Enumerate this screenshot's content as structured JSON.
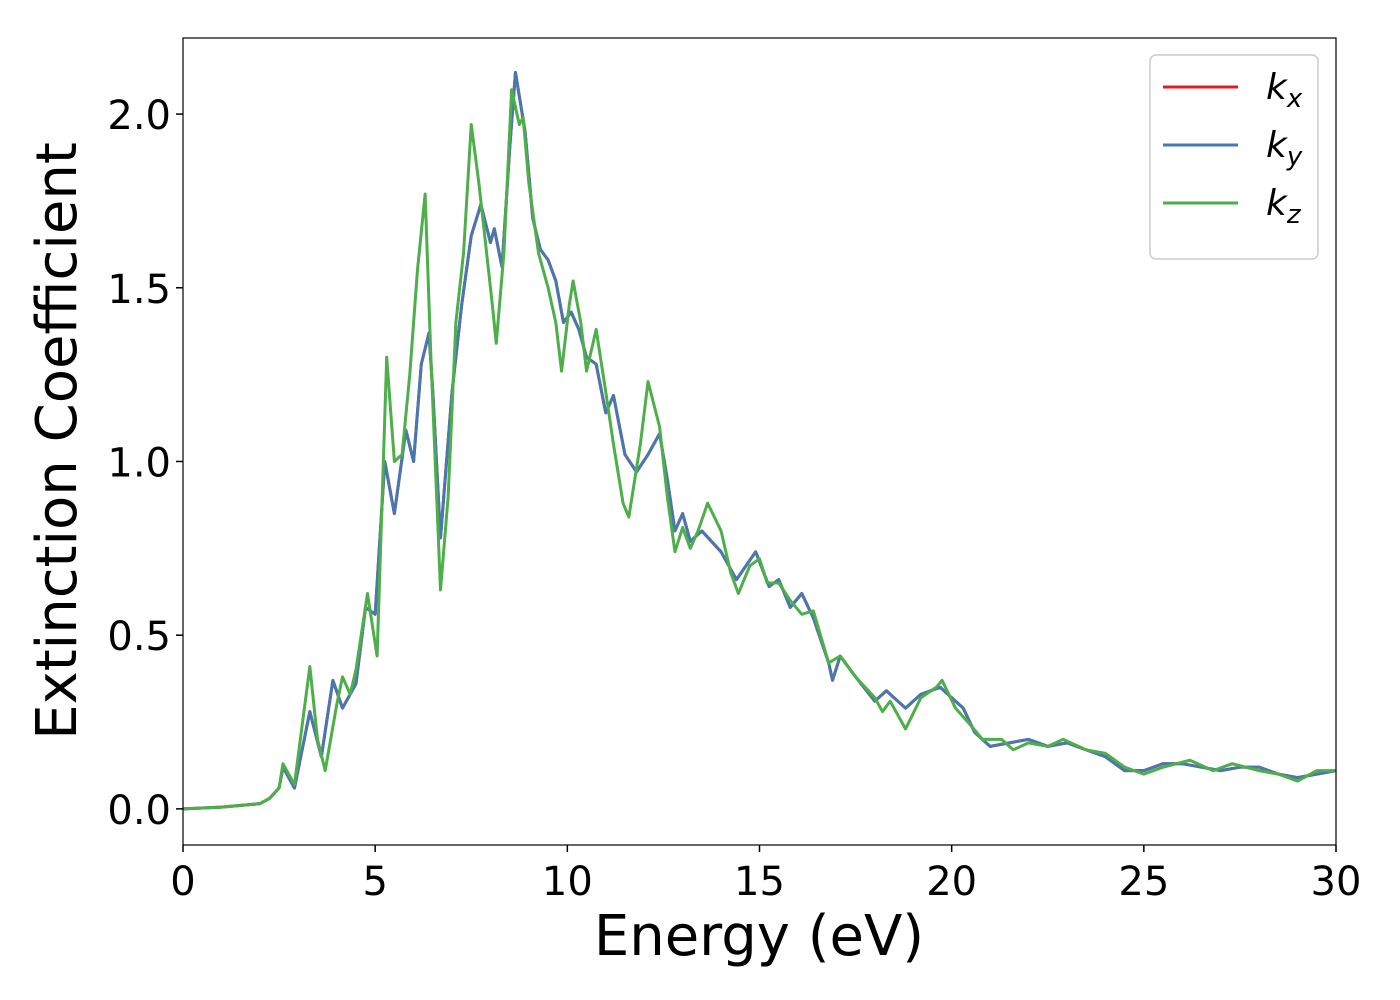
{
  "chart_data": {
    "type": "line",
    "x_label": "Energy (eV)",
    "y_label": "Extinction Coefficient",
    "xlim": [
      0,
      30
    ],
    "ylim": [
      -0.104,
      2.219
    ],
    "xticks": [
      0,
      5,
      10,
      15,
      20,
      25,
      30
    ],
    "yticks": [
      {
        "value": 0,
        "label": "0.0"
      },
      0.5,
      {
        "value": 1,
        "label": "1.0"
      },
      1.5,
      {
        "value": 2,
        "label": "2.0"
      }
    ],
    "legend": "upper right",
    "grid": false,
    "series": [
      {
        "name": "kx",
        "color": "#e41a1c",
        "x": [
          0,
          1,
          2,
          2.25,
          2.5,
          2.6,
          2.9,
          3.3,
          3.6,
          3.9,
          4.15,
          4.5,
          4.75,
          5.0,
          5.25,
          5.5,
          5.8,
          6.0,
          6.2,
          6.4,
          6.5,
          6.7,
          7.0,
          7.25,
          7.5,
          7.75,
          8.0,
          8.1,
          8.3,
          8.5,
          8.65,
          8.9,
          9.1,
          9.3,
          9.5,
          9.7,
          9.9,
          10.1,
          10.3,
          10.5,
          10.75,
          11.0,
          11.2,
          11.5,
          11.8,
          12.1,
          12.4,
          12.6,
          12.8,
          13.0,
          13.2,
          13.5,
          14.0,
          14.4,
          14.9,
          15.25,
          15.5,
          15.8,
          16.1,
          16.4,
          16.8,
          16.9,
          17.1,
          17.5,
          18.0,
          18.3,
          18.6,
          18.8,
          19.2,
          19.7,
          20.0,
          20.3,
          20.6,
          21,
          21.5,
          22,
          22.5,
          23,
          23.5,
          24,
          24.5,
          25,
          25.5,
          26,
          26.5,
          27,
          27.5,
          28,
          28.5,
          29,
          29.5,
          30
        ],
        "values": [
          0,
          0.005,
          0.015,
          0.03,
          0.06,
          0.12,
          0.06,
          0.28,
          0.15,
          0.37,
          0.29,
          0.36,
          0.58,
          0.56,
          1.0,
          0.85,
          1.09,
          1.0,
          1.28,
          1.37,
          1.2,
          0.78,
          1.2,
          1.45,
          1.65,
          1.74,
          1.63,
          1.67,
          1.56,
          1.9,
          2.12,
          1.95,
          1.7,
          1.61,
          1.58,
          1.52,
          1.4,
          1.43,
          1.38,
          1.3,
          1.28,
          1.14,
          1.19,
          1.02,
          0.97,
          1.02,
          1.08,
          0.95,
          0.8,
          0.85,
          0.77,
          0.8,
          0.74,
          0.66,
          0.74,
          0.64,
          0.66,
          0.58,
          0.62,
          0.55,
          0.42,
          0.37,
          0.44,
          0.38,
          0.31,
          0.34,
          0.31,
          0.29,
          0.33,
          0.35,
          0.32,
          0.29,
          0.22,
          0.18,
          0.19,
          0.2,
          0.18,
          0.19,
          0.17,
          0.15,
          0.11,
          0.11,
          0.13,
          0.13,
          0.12,
          0.11,
          0.12,
          0.12,
          0.1,
          0.09,
          0.1,
          0.11
        ]
      },
      {
        "name": "ky",
        "color": "#4878b0",
        "x": [
          0,
          1,
          2,
          2.25,
          2.5,
          2.6,
          2.9,
          3.3,
          3.6,
          3.9,
          4.15,
          4.5,
          4.75,
          5.0,
          5.25,
          5.5,
          5.8,
          6.0,
          6.2,
          6.4,
          6.5,
          6.7,
          7.0,
          7.25,
          7.5,
          7.75,
          8.0,
          8.1,
          8.3,
          8.5,
          8.65,
          8.9,
          9.1,
          9.3,
          9.5,
          9.7,
          9.9,
          10.1,
          10.3,
          10.5,
          10.75,
          11.0,
          11.2,
          11.5,
          11.8,
          12.1,
          12.4,
          12.6,
          12.8,
          13.0,
          13.2,
          13.5,
          14.0,
          14.4,
          14.9,
          15.25,
          15.5,
          15.8,
          16.1,
          16.4,
          16.8,
          16.9,
          17.1,
          17.5,
          18.0,
          18.3,
          18.6,
          18.8,
          19.2,
          19.7,
          20.0,
          20.3,
          20.6,
          21,
          21.5,
          22,
          22.5,
          23,
          23.5,
          24,
          24.5,
          25,
          25.5,
          26,
          26.5,
          27,
          27.5,
          28,
          28.5,
          29,
          29.5,
          30
        ],
        "values": [
          0,
          0.005,
          0.015,
          0.03,
          0.06,
          0.12,
          0.06,
          0.28,
          0.15,
          0.37,
          0.29,
          0.36,
          0.58,
          0.56,
          1.0,
          0.85,
          1.09,
          1.0,
          1.28,
          1.37,
          1.2,
          0.78,
          1.2,
          1.45,
          1.65,
          1.74,
          1.63,
          1.67,
          1.56,
          1.9,
          2.12,
          1.95,
          1.7,
          1.61,
          1.58,
          1.52,
          1.4,
          1.43,
          1.38,
          1.3,
          1.28,
          1.14,
          1.19,
          1.02,
          0.97,
          1.02,
          1.08,
          0.95,
          0.8,
          0.85,
          0.77,
          0.8,
          0.74,
          0.66,
          0.74,
          0.64,
          0.66,
          0.58,
          0.62,
          0.55,
          0.42,
          0.37,
          0.44,
          0.38,
          0.31,
          0.34,
          0.31,
          0.29,
          0.33,
          0.35,
          0.32,
          0.29,
          0.22,
          0.18,
          0.19,
          0.2,
          0.18,
          0.19,
          0.17,
          0.15,
          0.11,
          0.11,
          0.13,
          0.13,
          0.12,
          0.11,
          0.12,
          0.12,
          0.1,
          0.09,
          0.1,
          0.11
        ]
      },
      {
        "name": "kz",
        "color": "#4daf4a",
        "x": [
          0,
          1,
          2,
          2.25,
          2.5,
          2.6,
          2.9,
          3.3,
          3.5,
          3.7,
          4.0,
          4.15,
          4.35,
          4.5,
          4.8,
          5.05,
          5.3,
          5.5,
          5.7,
          5.9,
          6.1,
          6.3,
          6.45,
          6.7,
          6.9,
          7.1,
          7.3,
          7.5,
          7.7,
          7.9,
          8.05,
          8.15,
          8.35,
          8.55,
          8.75,
          8.85,
          9.0,
          9.25,
          9.5,
          9.7,
          9.85,
          10.05,
          10.15,
          10.35,
          10.5,
          10.75,
          11.0,
          11.2,
          11.45,
          11.6,
          11.9,
          12.1,
          12.4,
          12.6,
          12.8,
          13.0,
          13.2,
          13.4,
          13.65,
          14.0,
          14.25,
          14.45,
          14.75,
          15.0,
          15.2,
          15.5,
          15.8,
          16.1,
          16.4,
          16.8,
          17.1,
          17.5,
          18.0,
          18.2,
          18.4,
          18.8,
          19.2,
          19.6,
          19.75,
          20.1,
          20.5,
          20.8,
          21.3,
          21.6,
          22,
          22.5,
          22.9,
          23.5,
          24,
          24.5,
          25,
          25.5,
          26.2,
          26.8,
          27.3,
          28,
          28.5,
          29,
          29.5,
          30
        ],
        "values": [
          0,
          0.005,
          0.015,
          0.03,
          0.06,
          0.13,
          0.07,
          0.41,
          0.2,
          0.11,
          0.3,
          0.38,
          0.33,
          0.4,
          0.62,
          0.44,
          1.3,
          1.0,
          1.02,
          1.25,
          1.55,
          1.77,
          1.3,
          0.63,
          0.9,
          1.4,
          1.6,
          1.97,
          1.8,
          1.6,
          1.45,
          1.34,
          1.6,
          2.07,
          1.97,
          1.99,
          1.8,
          1.6,
          1.5,
          1.4,
          1.26,
          1.45,
          1.52,
          1.4,
          1.26,
          1.38,
          1.2,
          1.05,
          0.88,
          0.84,
          1.05,
          1.23,
          1.1,
          0.9,
          0.74,
          0.81,
          0.75,
          0.8,
          0.88,
          0.8,
          0.68,
          0.62,
          0.7,
          0.72,
          0.65,
          0.65,
          0.6,
          0.56,
          0.57,
          0.42,
          0.44,
          0.38,
          0.32,
          0.28,
          0.31,
          0.23,
          0.32,
          0.35,
          0.37,
          0.29,
          0.24,
          0.2,
          0.2,
          0.17,
          0.19,
          0.18,
          0.2,
          0.17,
          0.16,
          0.12,
          0.1,
          0.12,
          0.14,
          0.11,
          0.13,
          0.11,
          0.1,
          0.08,
          0.11,
          0.11
        ]
      }
    ]
  }
}
